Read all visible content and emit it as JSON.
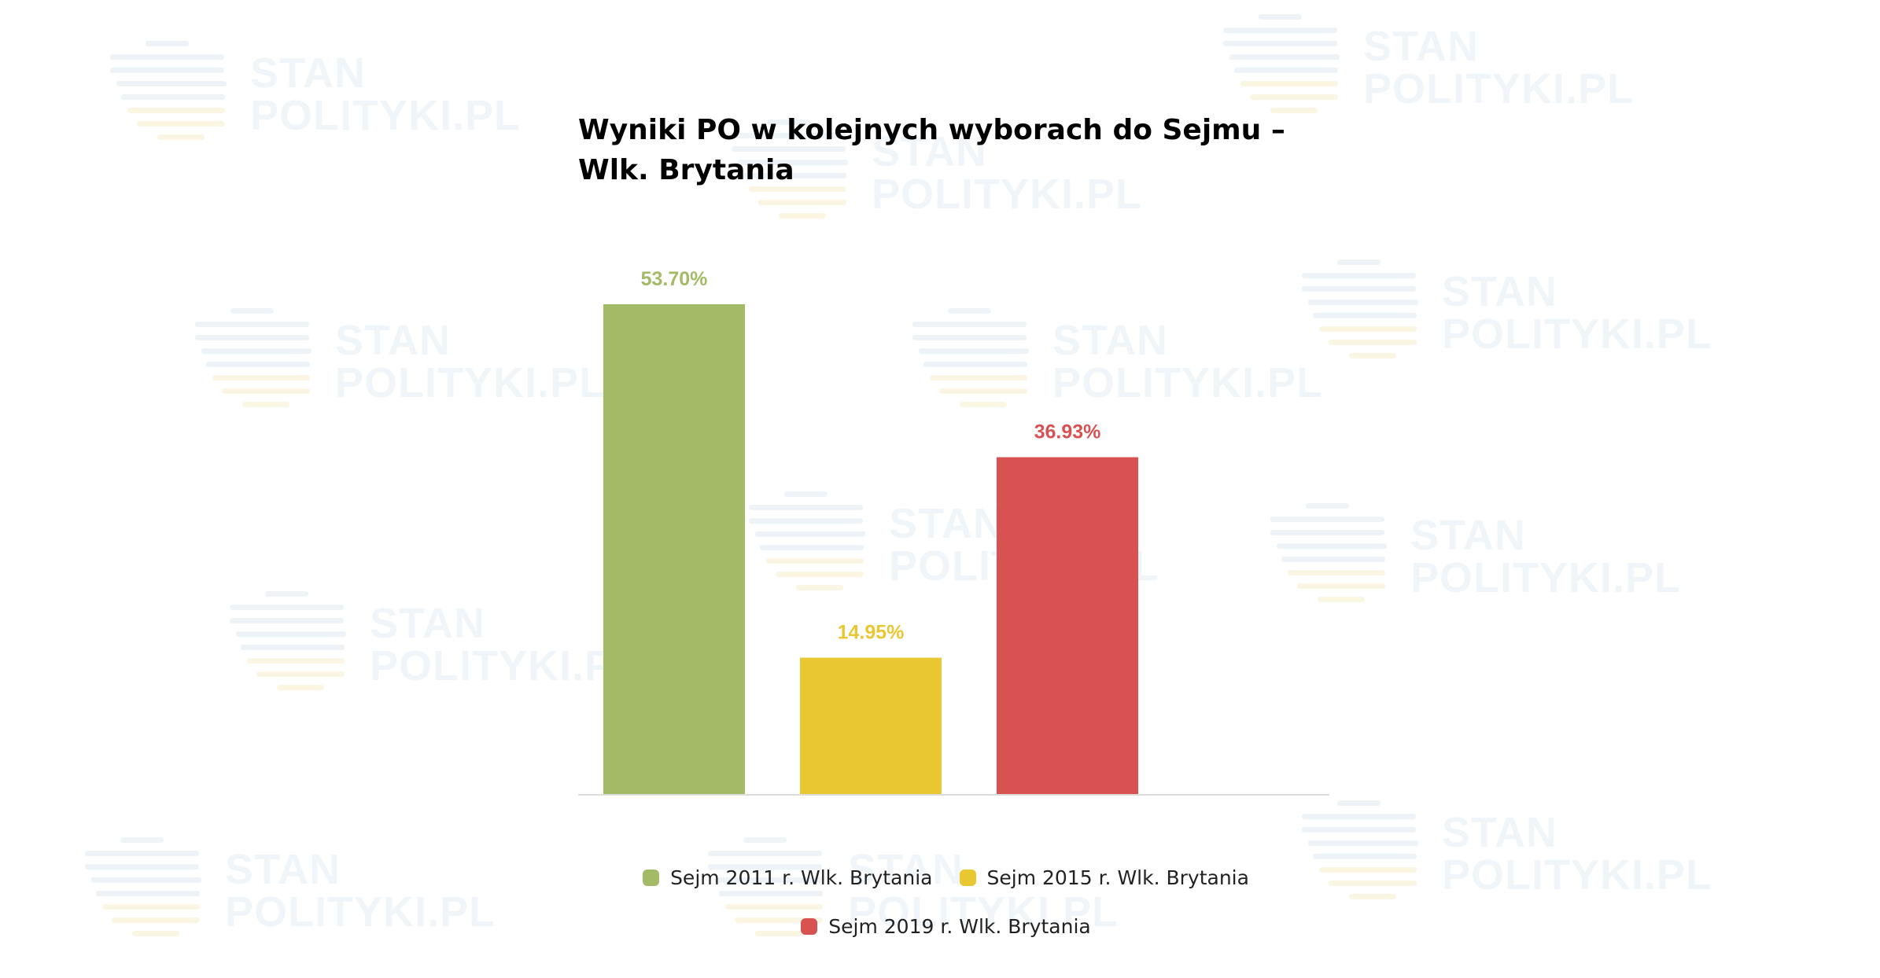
{
  "watermark": {
    "line1": "STAN",
    "line2": "POLITYKI.PL"
  },
  "chart_data": {
    "type": "bar",
    "title": "Wyniki PO w kolejnych wyborach do Sejmu – Wlk. Brytania",
    "categories": [
      "Sejm 2011 r. Wlk. Brytania",
      "Sejm 2015 r. Wlk. Brytania",
      "Sejm 2019 r. Wlk. Brytania"
    ],
    "values": [
      53.7,
      14.95,
      36.93
    ],
    "data_labels": [
      "53.70%",
      "14.95%",
      "36.93%"
    ],
    "colors": [
      "#a3ba67",
      "#e9c733",
      "#d95252"
    ],
    "ylim": [
      0,
      60
    ],
    "xlabel": "",
    "ylabel": "",
    "grid": false,
    "legend_position": "bottom"
  }
}
